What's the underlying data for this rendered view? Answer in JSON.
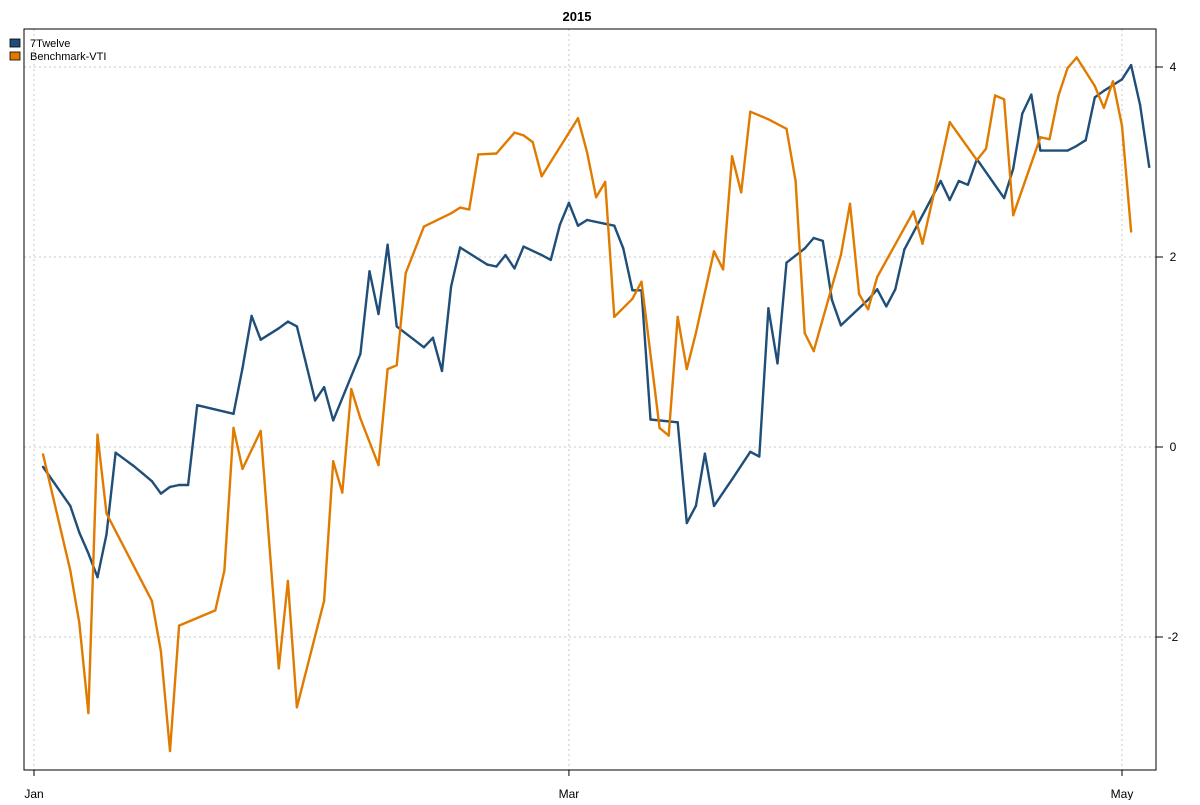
{
  "chart_data": {
    "type": "line",
    "title": "2015",
    "xlabel": "",
    "ylabel": "",
    "x_tick_labels": [
      "Jan",
      "Mar",
      "May"
    ],
    "x_tick_dates": [
      "2015-01-01",
      "2015-03-01",
      "2015-05-01"
    ],
    "xlim": [
      "2015-01-01",
      "2015-05-01"
    ],
    "ylim": [
      -3.4,
      4.4
    ],
    "y_ticks": [
      -2,
      0,
      2,
      4
    ],
    "y_axis_side": "right",
    "grid": true,
    "legend_position": "top-left",
    "series": [
      {
        "name": "7Twelve",
        "color": "#1f4e79",
        "points": [
          [
            "2015-01-02",
            -0.21
          ],
          [
            "2015-01-05",
            -0.62
          ],
          [
            "2015-01-06",
            -0.9
          ],
          [
            "2015-01-07",
            -1.12
          ],
          [
            "2015-01-08",
            -1.37
          ],
          [
            "2015-01-09",
            -0.92
          ],
          [
            "2015-01-10",
            -0.06
          ],
          [
            "2015-01-12",
            -0.2
          ],
          [
            "2015-01-13",
            -0.28
          ],
          [
            "2015-01-14",
            -0.36
          ],
          [
            "2015-01-15",
            -0.49
          ],
          [
            "2015-01-16",
            -0.42
          ],
          [
            "2015-01-17",
            -0.4
          ],
          [
            "2015-01-18",
            -0.4
          ],
          [
            "2015-01-19",
            0.44
          ],
          [
            "2015-01-23",
            0.35
          ],
          [
            "2015-01-24",
            0.83
          ],
          [
            "2015-01-25",
            1.38
          ],
          [
            "2015-01-26",
            1.13
          ],
          [
            "2015-01-28",
            1.25
          ],
          [
            "2015-01-29",
            1.32
          ],
          [
            "2015-01-30",
            1.27
          ],
          [
            "2015-02-01",
            0.49
          ],
          [
            "2015-02-02",
            0.63
          ],
          [
            "2015-02-03",
            0.28
          ],
          [
            "2015-02-06",
            0.98
          ],
          [
            "2015-02-07",
            1.85
          ],
          [
            "2015-02-08",
            1.4
          ],
          [
            "2015-02-09",
            2.13
          ],
          [
            "2015-02-10",
            1.27
          ],
          [
            "2015-02-13",
            1.05
          ],
          [
            "2015-02-14",
            1.15
          ],
          [
            "2015-02-15",
            0.8
          ],
          [
            "2015-02-16",
            1.69
          ],
          [
            "2015-02-17",
            2.1
          ],
          [
            "2015-02-20",
            1.92
          ],
          [
            "2015-02-21",
            1.9
          ],
          [
            "2015-02-22",
            2.02
          ],
          [
            "2015-02-23",
            1.88
          ],
          [
            "2015-02-24",
            2.11
          ],
          [
            "2015-02-26",
            2.02
          ],
          [
            "2015-02-27",
            1.97
          ],
          [
            "2015-02-28",
            2.34
          ],
          [
            "2015-03-01",
            2.57
          ],
          [
            "2015-03-02",
            2.33
          ],
          [
            "2015-03-03",
            2.39
          ],
          [
            "2015-03-05",
            2.35
          ],
          [
            "2015-03-06",
            2.33
          ],
          [
            "2015-03-07",
            2.09
          ],
          [
            "2015-03-08",
            1.65
          ],
          [
            "2015-03-09",
            1.65
          ],
          [
            "2015-03-10",
            0.29
          ],
          [
            "2015-03-13",
            0.26
          ],
          [
            "2015-03-14",
            -0.8
          ],
          [
            "2015-03-15",
            -0.62
          ],
          [
            "2015-03-16",
            -0.07
          ],
          [
            "2015-03-17",
            -0.62
          ],
          [
            "2015-03-19",
            -0.34
          ],
          [
            "2015-03-21",
            -0.05
          ],
          [
            "2015-03-22",
            -0.1
          ],
          [
            "2015-03-23",
            1.46
          ],
          [
            "2015-03-24",
            0.88
          ],
          [
            "2015-03-25",
            1.94
          ],
          [
            "2015-03-27",
            2.09
          ],
          [
            "2015-03-28",
            2.2
          ],
          [
            "2015-03-29",
            2.17
          ],
          [
            "2015-03-30",
            1.55
          ],
          [
            "2015-03-31",
            1.28
          ],
          [
            "2015-04-03",
            1.55
          ],
          [
            "2015-04-04",
            1.66
          ],
          [
            "2015-04-05",
            1.48
          ],
          [
            "2015-04-06",
            1.66
          ],
          [
            "2015-04-07",
            2.08
          ],
          [
            "2015-04-11",
            2.8
          ],
          [
            "2015-04-12",
            2.6
          ],
          [
            "2015-04-13",
            2.8
          ],
          [
            "2015-04-14",
            2.76
          ],
          [
            "2015-04-15",
            3.03
          ],
          [
            "2015-04-18",
            2.62
          ],
          [
            "2015-04-19",
            2.93
          ],
          [
            "2015-04-20",
            3.51
          ],
          [
            "2015-04-21",
            3.71
          ],
          [
            "2015-04-22",
            3.12
          ],
          [
            "2015-04-25",
            3.12
          ],
          [
            "2015-04-26",
            3.17
          ],
          [
            "2015-04-27",
            3.23
          ],
          [
            "2015-04-28",
            3.68
          ],
          [
            "2015-04-29",
            3.75
          ],
          [
            "2015-05-01",
            3.87
          ],
          [
            "2015-05-02",
            4.02
          ],
          [
            "2015-05-03",
            3.6
          ],
          [
            "2015-05-04",
            2.95
          ]
        ]
      },
      {
        "name": "Benchmark-VTI",
        "color": "#e07b00",
        "points": [
          [
            "2015-01-02",
            -0.08
          ],
          [
            "2015-01-05",
            -1.3
          ],
          [
            "2015-01-06",
            -1.85
          ],
          [
            "2015-01-07",
            -2.8
          ],
          [
            "2015-01-08",
            0.13
          ],
          [
            "2015-01-09",
            -0.7
          ],
          [
            "2015-01-14",
            -1.62
          ],
          [
            "2015-01-15",
            -2.15
          ],
          [
            "2015-01-16",
            -3.2
          ],
          [
            "2015-01-17",
            -1.88
          ],
          [
            "2015-01-21",
            -1.72
          ],
          [
            "2015-01-22",
            -1.3
          ],
          [
            "2015-01-23",
            0.2
          ],
          [
            "2015-01-24",
            -0.23
          ],
          [
            "2015-01-26",
            0.17
          ],
          [
            "2015-01-28",
            -2.33
          ],
          [
            "2015-01-29",
            -1.41
          ],
          [
            "2015-01-30",
            -2.74
          ],
          [
            "2015-02-02",
            -1.62
          ],
          [
            "2015-02-03",
            -0.15
          ],
          [
            "2015-02-04",
            -0.48
          ],
          [
            "2015-02-05",
            0.61
          ],
          [
            "2015-02-06",
            0.3
          ],
          [
            "2015-02-08",
            -0.19
          ],
          [
            "2015-02-09",
            0.82
          ],
          [
            "2015-02-10",
            0.86
          ],
          [
            "2015-02-11",
            1.83
          ],
          [
            "2015-02-13",
            2.32
          ],
          [
            "2015-02-16",
            2.46
          ],
          [
            "2015-02-17",
            2.52
          ],
          [
            "2015-02-18",
            2.5
          ],
          [
            "2015-02-19",
            3.08
          ],
          [
            "2015-02-21",
            3.09
          ],
          [
            "2015-02-23",
            3.31
          ],
          [
            "2015-02-24",
            3.28
          ],
          [
            "2015-02-25",
            3.21
          ],
          [
            "2015-02-26",
            2.85
          ],
          [
            "2015-03-02",
            3.46
          ],
          [
            "2015-03-03",
            3.1
          ],
          [
            "2015-03-04",
            2.63
          ],
          [
            "2015-03-05",
            2.79
          ],
          [
            "2015-03-06",
            1.37
          ],
          [
            "2015-03-08",
            1.56
          ],
          [
            "2015-03-09",
            1.74
          ],
          [
            "2015-03-11",
            0.2
          ],
          [
            "2015-03-12",
            0.12
          ],
          [
            "2015-03-13",
            1.37
          ],
          [
            "2015-03-14",
            0.82
          ],
          [
            "2015-03-15",
            1.2
          ],
          [
            "2015-03-17",
            2.06
          ],
          [
            "2015-03-18",
            1.87
          ],
          [
            "2015-03-19",
            3.06
          ],
          [
            "2015-03-20",
            2.68
          ],
          [
            "2015-03-21",
            3.53
          ],
          [
            "2015-03-23",
            3.45
          ],
          [
            "2015-03-25",
            3.35
          ],
          [
            "2015-03-26",
            2.8
          ],
          [
            "2015-03-27",
            1.2
          ],
          [
            "2015-03-28",
            1.01
          ],
          [
            "2015-03-31",
            2.02
          ],
          [
            "2015-04-01",
            2.56
          ],
          [
            "2015-04-02",
            1.61
          ],
          [
            "2015-04-03",
            1.45
          ],
          [
            "2015-04-04",
            1.79
          ],
          [
            "2015-04-08",
            2.48
          ],
          [
            "2015-04-09",
            2.14
          ],
          [
            "2015-04-11",
            2.98
          ],
          [
            "2015-04-12",
            3.42
          ],
          [
            "2015-04-15",
            3.02
          ],
          [
            "2015-04-16",
            3.14
          ],
          [
            "2015-04-17",
            3.7
          ],
          [
            "2015-04-18",
            3.66
          ],
          [
            "2015-04-19",
            2.44
          ],
          [
            "2015-04-22",
            3.26
          ],
          [
            "2015-04-23",
            3.24
          ],
          [
            "2015-04-24",
            3.7
          ],
          [
            "2015-04-25",
            3.99
          ],
          [
            "2015-04-26",
            4.1
          ],
          [
            "2015-04-28",
            3.8
          ],
          [
            "2015-04-29",
            3.57
          ],
          [
            "2015-04-30",
            3.85
          ],
          [
            "2015-05-01",
            3.38
          ],
          [
            "2015-05-02",
            2.27
          ]
        ]
      }
    ]
  }
}
